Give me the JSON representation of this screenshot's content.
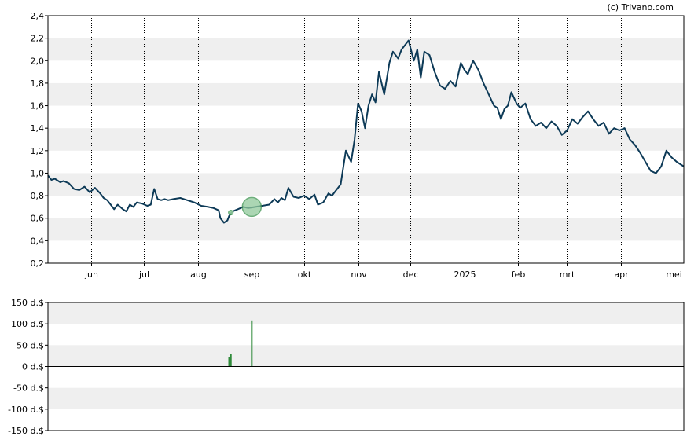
{
  "copyright": "(c) Trivano.com",
  "colors": {
    "band": "#efefef",
    "price_line": "#0d3a57",
    "volume_bar": "#2f8a3a",
    "marker_fill": "#8fc99a",
    "marker_stroke": "#3d9450",
    "grid": "#000000"
  },
  "chart_data": [
    {
      "type": "line",
      "title": "",
      "xlabel": "",
      "ylabel": "",
      "ylim": [
        0.2,
        2.4
      ],
      "yticks": [
        "0,2",
        "0,4",
        "0,6",
        "0,8",
        "1,0",
        "1,2",
        "1,4",
        "1,6",
        "1,8",
        "2,0",
        "2,2",
        "2,4"
      ],
      "yvalues": [
        0.2,
        0.4,
        0.6,
        0.8,
        1.0,
        1.2,
        1.4,
        1.6,
        1.8,
        2.0,
        2.2,
        2.4
      ],
      "xticks": [
        "jun",
        "jul",
        "aug",
        "sep",
        "okt",
        "nov",
        "dec",
        "2025",
        "feb",
        "mrt",
        "apr",
        "mei"
      ],
      "xlim": [
        "2024-05-07",
        "2025-05-07"
      ],
      "xtick_dates": [
        "2024-06-01",
        "2024-07-01",
        "2024-08-01",
        "2024-09-01",
        "2024-10-01",
        "2024-11-01",
        "2024-12-01",
        "2025-01-01",
        "2025-02-01",
        "2025-03-01",
        "2025-04-01",
        "2025-05-01"
      ],
      "grid": "vertical dotted at month ticks",
      "series": [
        {
          "x": [
            "2024-05-07",
            "2024-05-09",
            "2024-05-11",
            "2024-05-14",
            "2024-05-16",
            "2024-05-19",
            "2024-05-22",
            "2024-05-25",
            "2024-05-28",
            "2024-05-31",
            "2024-06-03",
            "2024-06-06",
            "2024-06-08",
            "2024-06-10",
            "2024-06-12",
            "2024-06-14",
            "2024-06-16",
            "2024-06-19",
            "2024-06-21",
            "2024-06-23",
            "2024-06-25",
            "2024-06-27",
            "2024-06-30",
            "2024-07-03",
            "2024-07-05",
            "2024-07-07",
            "2024-07-09",
            "2024-07-11",
            "2024-07-13",
            "2024-07-15",
            "2024-07-18",
            "2024-07-22",
            "2024-07-26",
            "2024-07-30",
            "2024-08-03",
            "2024-08-07",
            "2024-08-10",
            "2024-08-13",
            "2024-08-14",
            "2024-08-16",
            "2024-08-18",
            "2024-08-19",
            "2024-08-21",
            "2024-08-24",
            "2024-08-27",
            "2024-08-30",
            "2024-09-03",
            "2024-09-07",
            "2024-09-11",
            "2024-09-14",
            "2024-09-16",
            "2024-09-18",
            "2024-09-20",
            "2024-09-22",
            "2024-09-25",
            "2024-09-28",
            "2024-10-01",
            "2024-10-04",
            "2024-10-07",
            "2024-10-09",
            "2024-10-12",
            "2024-10-15",
            "2024-10-17",
            "2024-10-19",
            "2024-10-22",
            "2024-10-25",
            "2024-10-28",
            "2024-10-30",
            "2024-11-01",
            "2024-11-03",
            "2024-11-05",
            "2024-11-07",
            "2024-11-09",
            "2024-11-11",
            "2024-11-13",
            "2024-11-16",
            "2024-11-19",
            "2024-11-21",
            "2024-11-24",
            "2024-11-26",
            "2024-11-28",
            "2024-11-30",
            "2024-12-01",
            "2024-12-03",
            "2024-12-05",
            "2024-12-07",
            "2024-12-09",
            "2024-12-12",
            "2024-12-15",
            "2024-12-18",
            "2024-12-21",
            "2024-12-24",
            "2024-12-27",
            "2024-12-30",
            "2025-01-01",
            "2025-01-03",
            "2025-01-06",
            "2025-01-09",
            "2025-01-12",
            "2025-01-15",
            "2025-01-18",
            "2025-01-20",
            "2025-01-22",
            "2025-01-24",
            "2025-01-26",
            "2025-01-28",
            "2025-01-31",
            "2025-02-02",
            "2025-02-05",
            "2025-02-08",
            "2025-02-11",
            "2025-02-14",
            "2025-02-17",
            "2025-02-20",
            "2025-02-23",
            "2025-02-26",
            "2025-03-01",
            "2025-03-04",
            "2025-03-07",
            "2025-03-10",
            "2025-03-13",
            "2025-03-16",
            "2025-03-19",
            "2025-03-22",
            "2025-03-25",
            "2025-03-28",
            "2025-03-31",
            "2025-04-03",
            "2025-04-06",
            "2025-04-09",
            "2025-04-12",
            "2025-04-15",
            "2025-04-18",
            "2025-04-21",
            "2025-04-24",
            "2025-04-27",
            "2025-04-30",
            "2025-05-03",
            "2025-05-07"
          ],
          "values": [
            0.98,
            0.94,
            0.95,
            0.92,
            0.93,
            0.91,
            0.86,
            0.85,
            0.88,
            0.83,
            0.87,
            0.82,
            0.78,
            0.76,
            0.72,
            0.68,
            0.72,
            0.68,
            0.66,
            0.72,
            0.7,
            0.74,
            0.73,
            0.71,
            0.72,
            0.86,
            0.77,
            0.76,
            0.77,
            0.76,
            0.77,
            0.78,
            0.76,
            0.74,
            0.71,
            0.7,
            0.69,
            0.67,
            0.6,
            0.56,
            0.58,
            0.62,
            0.66,
            0.68,
            0.7,
            0.69,
            0.7,
            0.71,
            0.72,
            0.77,
            0.74,
            0.78,
            0.76,
            0.87,
            0.79,
            0.78,
            0.8,
            0.77,
            0.81,
            0.72,
            0.74,
            0.82,
            0.8,
            0.84,
            0.9,
            1.2,
            1.1,
            1.3,
            1.62,
            1.55,
            1.4,
            1.6,
            1.7,
            1.63,
            1.9,
            1.7,
            1.98,
            2.08,
            2.02,
            2.1,
            2.14,
            2.18,
            2.12,
            2.0,
            2.1,
            1.85,
            2.08,
            2.05,
            1.9,
            1.78,
            1.75,
            1.82,
            1.77,
            1.98,
            1.92,
            1.88,
            2.0,
            1.92,
            1.8,
            1.7,
            1.6,
            1.58,
            1.48,
            1.57,
            1.6,
            1.72,
            1.62,
            1.58,
            1.62,
            1.48,
            1.42,
            1.45,
            1.4,
            1.46,
            1.42,
            1.34,
            1.38,
            1.48,
            1.44,
            1.5,
            1.55,
            1.48,
            1.42,
            1.45,
            1.35,
            1.4,
            1.38,
            1.4,
            1.3,
            1.25,
            1.18,
            1.1,
            1.02,
            1.0,
            1.06,
            1.2,
            1.14,
            1.1,
            1.06
          ]
        }
      ],
      "annotation": {
        "x": "2024-09-01",
        "y": 0.7
      }
    },
    {
      "type": "bar",
      "title": "",
      "xlabel": "",
      "ylabel": "",
      "ylim": [
        -150,
        150
      ],
      "yticks": [
        "150 d.$",
        "100 d.$",
        "50 d.$",
        "0 d.$",
        "-50 d.$",
        "-100 d.$",
        "-150 d.$"
      ],
      "yvalues": [
        150,
        100,
        50,
        0,
        -50,
        -100,
        -150
      ],
      "grid": "horizontal bands",
      "bars": [
        {
          "x": "2024-08-19",
          "value": 22
        },
        {
          "x": "2024-08-20",
          "value": 30
        },
        {
          "x": "2024-09-01",
          "value": 108
        }
      ]
    }
  ]
}
